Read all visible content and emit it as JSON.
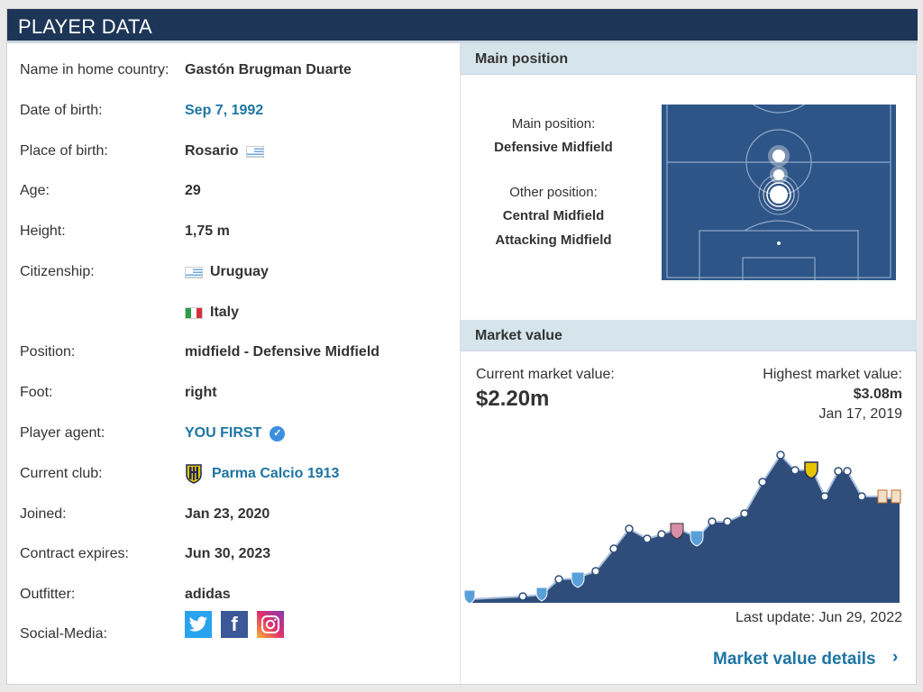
{
  "header": {
    "title": "PLAYER DATA"
  },
  "player": {
    "rows": [
      {
        "label": "Name in home country:",
        "value": "Gastón Brugman Duarte"
      },
      {
        "label": "Date of birth:",
        "value": "Sep 7, 1992"
      },
      {
        "label": "Place of birth:",
        "value": "Rosario"
      },
      {
        "label": "Age:",
        "value": "29"
      },
      {
        "label": "Height:",
        "value": "1,75 m"
      },
      {
        "label": "Citizenship:",
        "value": "Uruguay"
      },
      {
        "label": "",
        "value": "Italy"
      },
      {
        "label": "Position:",
        "value": "midfield - Defensive Midfield"
      },
      {
        "label": "Foot:",
        "value": "right"
      },
      {
        "label": "Player agent:",
        "value": "YOU FIRST"
      },
      {
        "label": "Current club:",
        "value": "Parma Calcio 1913"
      },
      {
        "label": "Joined:",
        "value": "Jan 23, 2020"
      },
      {
        "label": "Contract expires:",
        "value": "Jun 30, 2023"
      },
      {
        "label": "Outfitter:",
        "value": "adidas"
      },
      {
        "label": "Social-Media:",
        "value": ""
      }
    ],
    "social_icons": [
      "twitter-icon",
      "facebook-icon",
      "instagram-icon"
    ],
    "facebook_glyph": "f"
  },
  "position": {
    "header": "Main position",
    "main_label": "Main position:",
    "main_value": "Defensive Midfield",
    "other_label": "Other position:",
    "other_values": [
      "Central Midfield",
      "Attacking Midfield"
    ]
  },
  "market": {
    "header": "Market value",
    "current_label": "Current market value:",
    "current_value": "$2.20m",
    "highest_label": "Highest market value:",
    "highest_value": "$3.08m",
    "highest_date": "Jan 17, 2019",
    "last_update": "Last update: Jun 29, 2022",
    "details_link": "Market value details",
    "chevron": "›"
  },
  "colors": {
    "header_bg": "#1d3557",
    "link": "#1d75a3",
    "pitch": "#2e5587",
    "area": "#2e4d7a"
  }
}
